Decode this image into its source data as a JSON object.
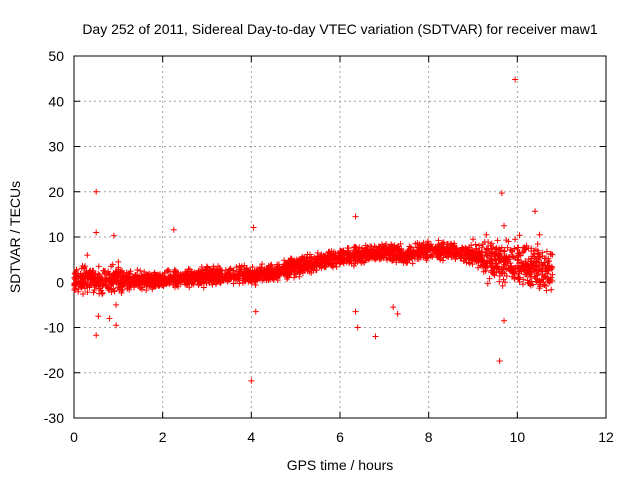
{
  "chart_data": {
    "type": "scatter",
    "title": "Day 252 of 2011, Sidereal Day-to-day VTEC variation (SDTVAR) for receiver maw1",
    "xlabel": "GPS time / hours",
    "ylabel": "SDTVAR / TECUs",
    "xlim": [
      0,
      12
    ],
    "ylim": [
      -30,
      50
    ],
    "grid": true,
    "marker": "+",
    "color": "#ff0000",
    "xticks": [
      0,
      2,
      4,
      6,
      8,
      10,
      12
    ],
    "yticks": [
      -30,
      -20,
      -10,
      0,
      10,
      20,
      30,
      40,
      50
    ],
    "trend": [
      [
        0.0,
        0.5
      ],
      [
        1.0,
        0.4
      ],
      [
        2.0,
        0.5
      ],
      [
        3.0,
        1.3
      ],
      [
        4.0,
        1.5
      ],
      [
        4.5,
        2.2
      ],
      [
        5.0,
        3.5
      ],
      [
        5.5,
        4.3
      ],
      [
        6.0,
        5.5
      ],
      [
        6.5,
        6.0
      ],
      [
        7.0,
        6.8
      ],
      [
        7.5,
        6.0
      ],
      [
        8.0,
        7.2
      ],
      [
        8.5,
        7.0
      ],
      [
        9.0,
        6.0
      ],
      [
        9.5,
        4.5
      ],
      [
        10.0,
        3.5
      ],
      [
        10.5,
        3.0
      ],
      [
        10.8,
        2.8
      ]
    ],
    "series": [
      {
        "name": "maw1",
        "x": [
          9.95,
          0.5,
          9.65,
          4.05,
          9.6,
          10.4,
          6.35,
          2.25,
          0.5,
          0.9,
          9.7,
          0.3,
          9.8,
          10.5,
          1.0,
          0.55,
          0.8,
          0.95,
          0.5,
          6.8,
          6.4,
          9.7,
          6.35,
          4.1,
          0.95,
          4.0,
          9.0,
          9.3,
          8.6,
          7.2,
          7.3,
          5.5,
          10.05,
          9.75,
          9.95
        ],
        "y": [
          44.8,
          20.0,
          19.7,
          12.1,
          -17.4,
          15.7,
          14.5,
          11.6,
          11.0,
          10.3,
          12.5,
          6.0,
          9.0,
          10.5,
          4.5,
          -7.5,
          -8.0,
          -9.5,
          -11.7,
          -12.0,
          -10.0,
          -8.5,
          -6.5,
          -6.5,
          -5.0,
          -21.8,
          9.5,
          10.5,
          6.0,
          -5.5,
          -7.0,
          6.5,
          10.4,
          9.3,
          9.5
        ]
      }
    ]
  }
}
